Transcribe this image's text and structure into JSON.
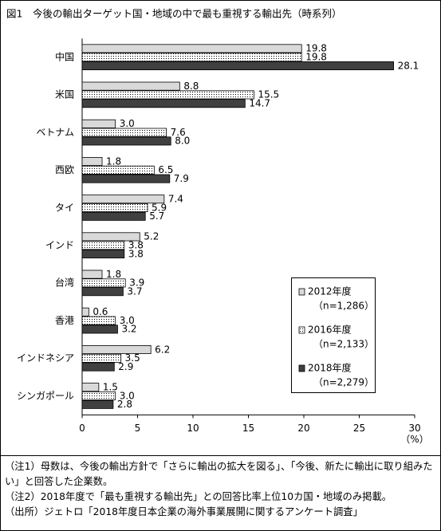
{
  "chart_data": {
    "type": "hbar",
    "title": "図1　今後の輸出ターゲット国・地域の中で最も重視する輸出先（時系列）",
    "categories": [
      "中国",
      "米国",
      "ベトナム",
      "西欧",
      "タイ",
      "インド",
      "台湾",
      "香港",
      "インドネシア",
      "シンガポール"
    ],
    "series": [
      {
        "name": "2012年度",
        "sample": "（n=1,286）",
        "color": "#d9d9d9",
        "values": [
          19.8,
          8.8,
          3.0,
          1.8,
          7.4,
          5.2,
          1.8,
          0.6,
          6.2,
          1.5
        ],
        "value_labels": [
          "19.8",
          "8.8",
          "3.0",
          "1.8",
          "7.4",
          "5.2",
          "1.8",
          "0.6",
          "6.2",
          "1.5"
        ]
      },
      {
        "name": "2016年度",
        "sample": "（n=2,133）",
        "color": "#ffffff",
        "pattern": "dots",
        "values": [
          19.8,
          15.5,
          7.6,
          6.5,
          5.9,
          3.8,
          3.9,
          3.0,
          3.5,
          3.0
        ],
        "value_labels": [
          "19.8",
          "15.5",
          "7.6",
          "6.5",
          "5.9",
          "3.8",
          "3.9",
          "3.0",
          "3.5",
          "3.0"
        ]
      },
      {
        "name": "2018年度",
        "sample": "（n=2,279）",
        "color": "#404040",
        "values": [
          28.1,
          14.7,
          8.0,
          7.9,
          5.7,
          3.8,
          3.7,
          3.2,
          2.9,
          2.8
        ],
        "value_labels": [
          "28.1",
          "14.7",
          "8.0",
          "7.9",
          "5.7",
          "3.8",
          "3.7",
          "3.2",
          "2.9",
          "2.8"
        ]
      }
    ],
    "xlim": [
      0,
      30
    ],
    "xticks": [
      0,
      5,
      10,
      15,
      20,
      25,
      30
    ],
    "x_unit": "（%）",
    "legend": "lower-right",
    "grid": false,
    "notes": [
      "（注1）母数は、今後の輸出方針で「さらに輸出の拡大を図る」、「今後、新たに輸出に取り組みたい」と回答した企業数。",
      "（注2）2018年度で「最も重視する輸出先」との回答比率上位10カ国・地域のみ掲載。",
      "（出所）ジェトロ「2018年度日本企業の海外事業展開に関するアンケート調査」"
    ]
  }
}
